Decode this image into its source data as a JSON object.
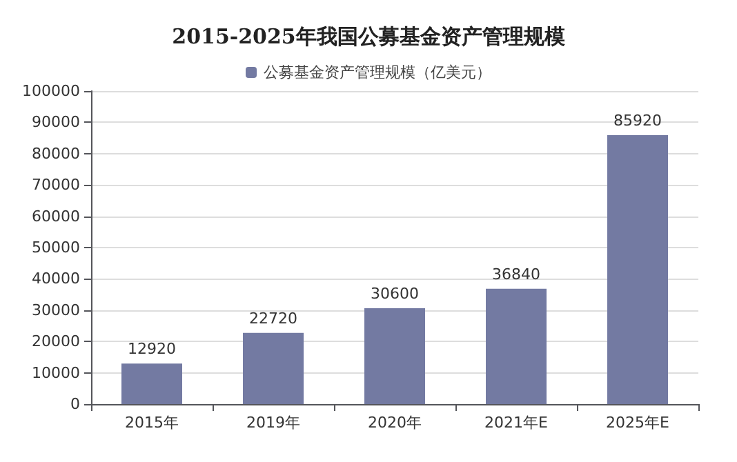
{
  "chart_data": {
    "type": "bar",
    "title": "2015-2025年我国公募基金资产管理规模",
    "categories": [
      "2015年",
      "2019年",
      "2020年",
      "2021年E",
      "2025年E"
    ],
    "series": [
      {
        "name": "公募基金资产管理规模（亿美元）",
        "color": "#737aa2",
        "values": [
          12920,
          22720,
          30600,
          36840,
          85920
        ]
      }
    ],
    "ylim": [
      0,
      100000
    ],
    "yticks": [
      0,
      10000,
      20000,
      30000,
      40000,
      50000,
      60000,
      70000,
      80000,
      90000,
      100000
    ],
    "grid": "y",
    "legend": "top",
    "data_labels": true
  }
}
